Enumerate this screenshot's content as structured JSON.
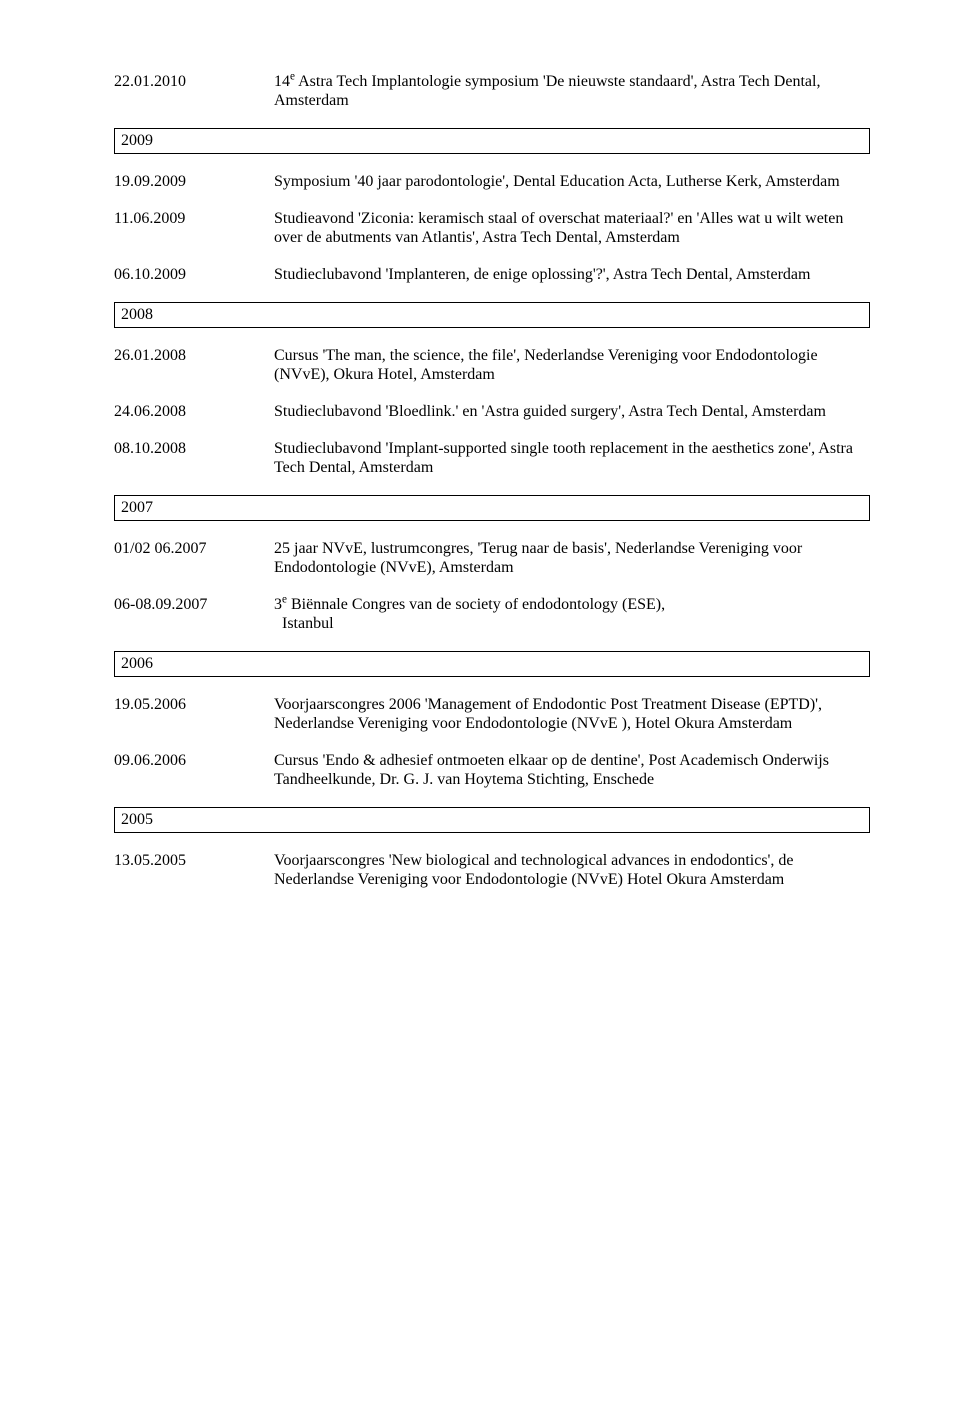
{
  "sections": [
    {
      "type": "entry",
      "date": "22.01.2010",
      "desc_html": "14<sup>e</sup> Astra Tech Implantologie symposium 'De nieuwste standaard', Astra Tech Dental, Amsterdam"
    },
    {
      "type": "year",
      "label": "2009"
    },
    {
      "type": "entry",
      "date": "19.09.2009",
      "desc_html": "Symposium '40 jaar parodontologie', Dental Education Acta, Lutherse Kerk, Amsterdam"
    },
    {
      "type": "entry",
      "date": "11.06.2009",
      "desc_html": "Studieavond 'Ziconia: keramisch staal of overschat materiaal?' en 'Alles wat u wilt weten over de abutments van Atlantis', Astra Tech Dental, Amsterdam"
    },
    {
      "type": "entry",
      "date": "06.10.2009",
      "desc_html": "Studieclubavond 'Implanteren, de enige oplossing'?', Astra Tech Dental, Amsterdam"
    },
    {
      "type": "year",
      "label": "2008"
    },
    {
      "type": "entry",
      "date": "26.01.2008",
      "desc_html": "Cursus 'The man, the science, the file', Nederlandse Vereniging voor Endodontologie (NVvE), Okura Hotel, Amsterdam"
    },
    {
      "type": "entry",
      "date": "24.06.2008",
      "desc_html": "Studieclubavond 'Bloedlink.' en 'Astra guided surgery', Astra Tech Dental, Amsterdam"
    },
    {
      "type": "entry",
      "date": "08.10.2008",
      "desc_html": "Studieclubavond 'Implant-supported single tooth replacement in the aesthetics zone', Astra Tech Dental, Amsterdam"
    },
    {
      "type": "year",
      "label": "2007"
    },
    {
      "type": "entry",
      "date": "01/02 06.2007",
      "desc_html": "25 jaar NVvE, lustrumcongres, 'Terug naar de basis', Nederlandse Vereniging voor Endodontologie (NVvE), Amsterdam"
    },
    {
      "type": "entry_indent",
      "date": "06-08.09.2007",
      "desc_html": "3<sup>e</sup> Biënnale Congres van de society of endodontology (ESE), Istanbul"
    },
    {
      "type": "year",
      "label": "2006"
    },
    {
      "type": "entry",
      "date": "19.05.2006",
      "desc_html": "Voorjaarscongres 2006 'Management of Endodontic Post Treatment Disease (EPTD)', Nederlandse Vereniging voor Endodontologie (NVvE ), Hotel Okura Amsterdam"
    },
    {
      "type": "entry",
      "date": "09.06.2006",
      "desc_html": "Cursus 'Endo &amp; adhesief ontmoeten elkaar op de dentine', Post Academisch Onderwijs Tandheelkunde, Dr. G. J. van Hoytema Stichting, Enschede"
    },
    {
      "type": "year",
      "label": "2005"
    },
    {
      "type": "entry",
      "date": "13.05.2005",
      "desc_html": "Voorjaarscongres 'New biological and technological advances in endodontics', de Nederlandse Vereniging voor Endodontologie (NVvE) Hotel Okura Amsterdam"
    }
  ]
}
